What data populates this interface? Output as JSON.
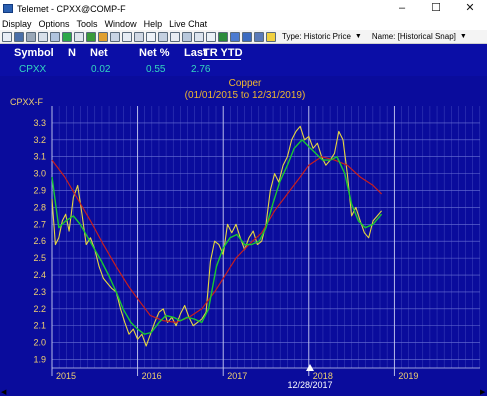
{
  "window": {
    "title": "Telemet - CPXX@COMP-F",
    "controls": {
      "minimize": "–",
      "maximize": "☐",
      "close": "✕"
    }
  },
  "menu": {
    "items": [
      "Display",
      "Options",
      "Tools",
      "Window",
      "Help",
      "Live Chat"
    ]
  },
  "toolbar": {
    "type_label": "Type: Historic Price",
    "name_label": "Name: [Historical Snap]",
    "caret": "▼"
  },
  "quote": {
    "headers": {
      "symbol": "Symbol",
      "n": "N",
      "net": "Net",
      "net_pct": "Net %",
      "last": "Last",
      "tr_ytd": "TR YTD"
    },
    "values": {
      "symbol": "CPXX",
      "net": "0.02",
      "net_pct": "0.55",
      "last": "2.76"
    }
  },
  "chart": {
    "title": "Copper",
    "subtitle": "(01/01/2015 to 12/31/2019)",
    "symbol_label": "CPXX-F",
    "cursor_date": "12/28/2017",
    "colors": {
      "background": "#0a0c9c",
      "grid": "#6a72d6",
      "price": "#e6d640",
      "short_ma": "#18c832",
      "long_ma": "#c81e1e",
      "axis_text": "#f0d070",
      "title": "#f0b830"
    }
  },
  "chart_data": {
    "type": "line",
    "title": "Copper",
    "subtitle": "(01/01/2015 to 12/31/2019)",
    "ylabel": "CPXX-F",
    "ylim": [
      1.85,
      3.4
    ],
    "yticks": [
      1.9,
      2.0,
      2.1,
      2.2,
      2.3,
      2.4,
      2.5,
      2.6,
      2.7,
      2.8,
      2.9,
      3.0,
      3.1,
      3.2,
      3.3
    ],
    "xlim": [
      2015.0,
      2020.0
    ],
    "xticks": [
      {
        "value": 2015,
        "label": "2015"
      },
      {
        "value": 2016,
        "label": "2016"
      },
      {
        "value": 2017,
        "label": "2017"
      },
      {
        "value": 2018,
        "label": "2018"
      },
      {
        "value": 2019,
        "label": "2019"
      }
    ],
    "grid": true,
    "series": [
      {
        "key": "price",
        "x": [
          2015.0,
          2015.04,
          2015.08,
          2015.12,
          2015.16,
          2015.2,
          2015.25,
          2015.3,
          2015.35,
          2015.4,
          2015.45,
          2015.5,
          2015.55,
          2015.6,
          2015.65,
          2015.7,
          2015.75,
          2015.8,
          2015.85,
          2015.9,
          2015.95,
          2016.0,
          2016.05,
          2016.1,
          2016.15,
          2016.2,
          2016.25,
          2016.3,
          2016.35,
          2016.4,
          2016.45,
          2016.5,
          2016.55,
          2016.6,
          2016.65,
          2016.7,
          2016.75,
          2016.8,
          2016.85,
          2016.9,
          2016.95,
          2017.0,
          2017.05,
          2017.1,
          2017.15,
          2017.2,
          2017.25,
          2017.3,
          2017.35,
          2017.4,
          2017.45,
          2017.5,
          2017.55,
          2017.6,
          2017.65,
          2017.7,
          2017.75,
          2017.8,
          2017.85,
          2017.9,
          2017.95,
          2018.0,
          2018.05,
          2018.1,
          2018.15,
          2018.2,
          2018.25,
          2018.3,
          2018.35,
          2018.4,
          2018.45,
          2018.5,
          2018.55,
          2018.6,
          2018.65,
          2018.7,
          2018.75,
          2018.8,
          2018.85
        ],
        "y": [
          2.85,
          2.58,
          2.62,
          2.72,
          2.76,
          2.66,
          2.86,
          2.93,
          2.76,
          2.58,
          2.62,
          2.55,
          2.45,
          2.38,
          2.35,
          2.32,
          2.3,
          2.2,
          2.12,
          2.05,
          2.08,
          2.02,
          2.05,
          1.98,
          2.05,
          2.12,
          2.18,
          2.2,
          2.12,
          2.15,
          2.1,
          2.17,
          2.22,
          2.15,
          2.1,
          2.12,
          2.14,
          2.18,
          2.48,
          2.6,
          2.58,
          2.52,
          2.7,
          2.65,
          2.7,
          2.62,
          2.55,
          2.62,
          2.66,
          2.58,
          2.6,
          2.7,
          2.9,
          3.0,
          2.95,
          3.05,
          3.1,
          3.2,
          3.25,
          3.28,
          3.2,
          3.22,
          3.15,
          3.18,
          3.1,
          3.05,
          3.08,
          3.12,
          3.25,
          3.2,
          3.0,
          2.75,
          2.8,
          2.72,
          2.65,
          2.62,
          2.72,
          2.75,
          2.78
        ]
      },
      {
        "key": "short_ma",
        "x": [
          2015.0,
          2015.08,
          2015.16,
          2015.25,
          2015.33,
          2015.42,
          2015.5,
          2015.58,
          2015.66,
          2015.75,
          2015.83,
          2015.92,
          2016.0,
          2016.08,
          2016.16,
          2016.25,
          2016.33,
          2016.42,
          2016.5,
          2016.58,
          2016.66,
          2016.75,
          2016.83,
          2016.92,
          2017.0,
          2017.08,
          2017.16,
          2017.25,
          2017.33,
          2017.42,
          2017.5,
          2017.58,
          2017.66,
          2017.75,
          2017.83,
          2017.92,
          2018.0,
          2018.08,
          2018.16,
          2018.25,
          2018.33,
          2018.42,
          2018.5,
          2018.58,
          2018.66,
          2018.75,
          2018.85
        ],
        "y": [
          2.98,
          2.68,
          2.72,
          2.75,
          2.7,
          2.62,
          2.55,
          2.48,
          2.4,
          2.3,
          2.2,
          2.12,
          2.08,
          2.05,
          2.06,
          2.12,
          2.16,
          2.15,
          2.13,
          2.15,
          2.14,
          2.12,
          2.2,
          2.45,
          2.56,
          2.62,
          2.64,
          2.58,
          2.58,
          2.6,
          2.68,
          2.82,
          2.95,
          3.05,
          3.15,
          3.2,
          3.16,
          3.12,
          3.08,
          3.08,
          3.1,
          3.0,
          2.82,
          2.72,
          2.68,
          2.7,
          2.76
        ]
      },
      {
        "key": "long_ma",
        "x": [
          2015.0,
          2015.15,
          2015.3,
          2015.45,
          2015.6,
          2015.75,
          2015.9,
          2016.0,
          2016.15,
          2016.3,
          2016.45,
          2016.6,
          2016.75,
          2016.9,
          2017.0,
          2017.15,
          2017.3,
          2017.45,
          2017.6,
          2017.75,
          2017.9,
          2018.0,
          2018.15,
          2018.3,
          2018.45,
          2018.6,
          2018.75,
          2018.85
        ],
        "y": [
          3.08,
          2.98,
          2.85,
          2.72,
          2.58,
          2.45,
          2.33,
          2.26,
          2.16,
          2.13,
          2.12,
          2.15,
          2.2,
          2.3,
          2.38,
          2.5,
          2.58,
          2.65,
          2.78,
          2.88,
          2.98,
          3.05,
          3.1,
          3.08,
          3.05,
          2.98,
          2.93,
          2.88
        ]
      }
    ]
  }
}
